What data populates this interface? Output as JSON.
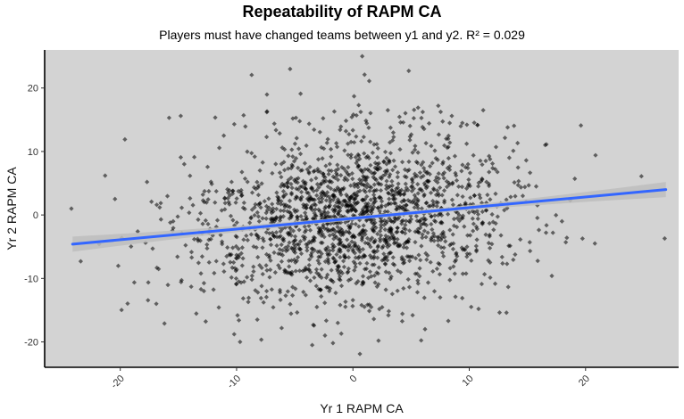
{
  "chart_data": {
    "type": "scatter",
    "title": "Repeatability of RAPM CA",
    "subtitle": "Players must have changed teams between y1 and y2. R² = 0.029",
    "xlabel": "Yr 1 RAPM CA",
    "ylabel": "Yr 2 RAPM CA",
    "xlim": [
      -26.5,
      28
    ],
    "ylim": [
      -24,
      26
    ],
    "xticks": [
      -20,
      -10,
      0,
      10,
      20
    ],
    "yticks": [
      -20,
      -10,
      0,
      10,
      20
    ],
    "xtick_labels": [
      "-20",
      "-10",
      "0",
      "10",
      "20"
    ],
    "ytick_labels": [
      "-20",
      "-10",
      "0",
      "10",
      "20"
    ],
    "grid": false,
    "panel_color": "#d3d3d3",
    "point_color": "#000000",
    "point_shape": "diamond",
    "trend_color": "#3366ff",
    "ribbon_color": "#bdbdbd",
    "trend_line": {
      "method": "linear",
      "x": [
        -24.1,
        26.9
      ],
      "y": [
        -4.6,
        4.0
      ],
      "ci_halfwidth_ends": 1.2,
      "ci_halfwidth_center": 0.3
    },
    "point_count_approx": 1900,
    "distribution": {
      "x_mean": 0,
      "x_sd": 6.8,
      "y_mean": -0.6,
      "y_sd": 6.6,
      "slope": 0.17,
      "seed": 20240
    },
    "points": [
      [
        -24.2,
        1.0
      ],
      [
        -23.4,
        -7.3
      ],
      [
        -21.3,
        6.2
      ],
      [
        -19.6,
        11.9
      ],
      [
        -18.5,
        -2.6
      ],
      [
        -17.7,
        5.2
      ],
      [
        -16.9,
        -14.0
      ],
      [
        -16.5,
        -0.7
      ],
      [
        -16.2,
        -17.1
      ],
      [
        -15.8,
        15.3
      ],
      [
        -15.7,
        -1.2
      ],
      [
        -14.8,
        15.6
      ],
      [
        -14.5,
        8.0
      ],
      [
        -13.9,
        -11.3
      ],
      [
        -12.9,
        3.2
      ],
      [
        -11.1,
        12.5
      ],
      [
        -10.2,
        14.3
      ],
      [
        -9.7,
        -20.0
      ],
      [
        -9.8,
        -16.6
      ],
      [
        -8.1,
        4.6
      ],
      [
        -7.9,
        -13.1
      ],
      [
        -7.4,
        16.2
      ],
      [
        -5.4,
        23.0
      ],
      [
        -4.9,
        15.3
      ],
      [
        -4.5,
        19.1
      ],
      [
        -3.5,
        -20.5
      ],
      [
        -3.1,
        -14.5
      ],
      [
        -2.4,
        -19.0
      ],
      [
        -1.6,
        16.3
      ],
      [
        -1.0,
        -18.7
      ],
      [
        -0.6,
        13.2
      ],
      [
        0.1,
        18.7
      ],
      [
        0.5,
        17.3
      ],
      [
        0.6,
        -21.9
      ],
      [
        0.8,
        25.0
      ],
      [
        1.0,
        22.1
      ],
      [
        1.4,
        21.1
      ],
      [
        1.8,
        -16.4
      ],
      [
        2.2,
        -19.8
      ],
      [
        3.0,
        16.5
      ],
      [
        4.8,
        22.7
      ],
      [
        5.6,
        16.9
      ],
      [
        6.2,
        -18.0
      ],
      [
        8.2,
        -16.7
      ],
      [
        8.5,
        15.6
      ],
      [
        9.4,
        -13.1
      ],
      [
        10.8,
        -14.8
      ],
      [
        11.2,
        16.5
      ],
      [
        12.3,
        10.7
      ],
      [
        13.2,
        -15.4
      ],
      [
        13.3,
        13.8
      ],
      [
        14.9,
        8.6
      ],
      [
        15.2,
        -4.3
      ],
      [
        16.6,
        -2.8
      ],
      [
        17.1,
        -9.6
      ],
      [
        19.6,
        14.1
      ],
      [
        20.8,
        -4.5
      ],
      [
        24.8,
        6.1
      ],
      [
        26.8,
        -3.7
      ],
      [
        18.3,
        -4.3
      ]
    ]
  }
}
